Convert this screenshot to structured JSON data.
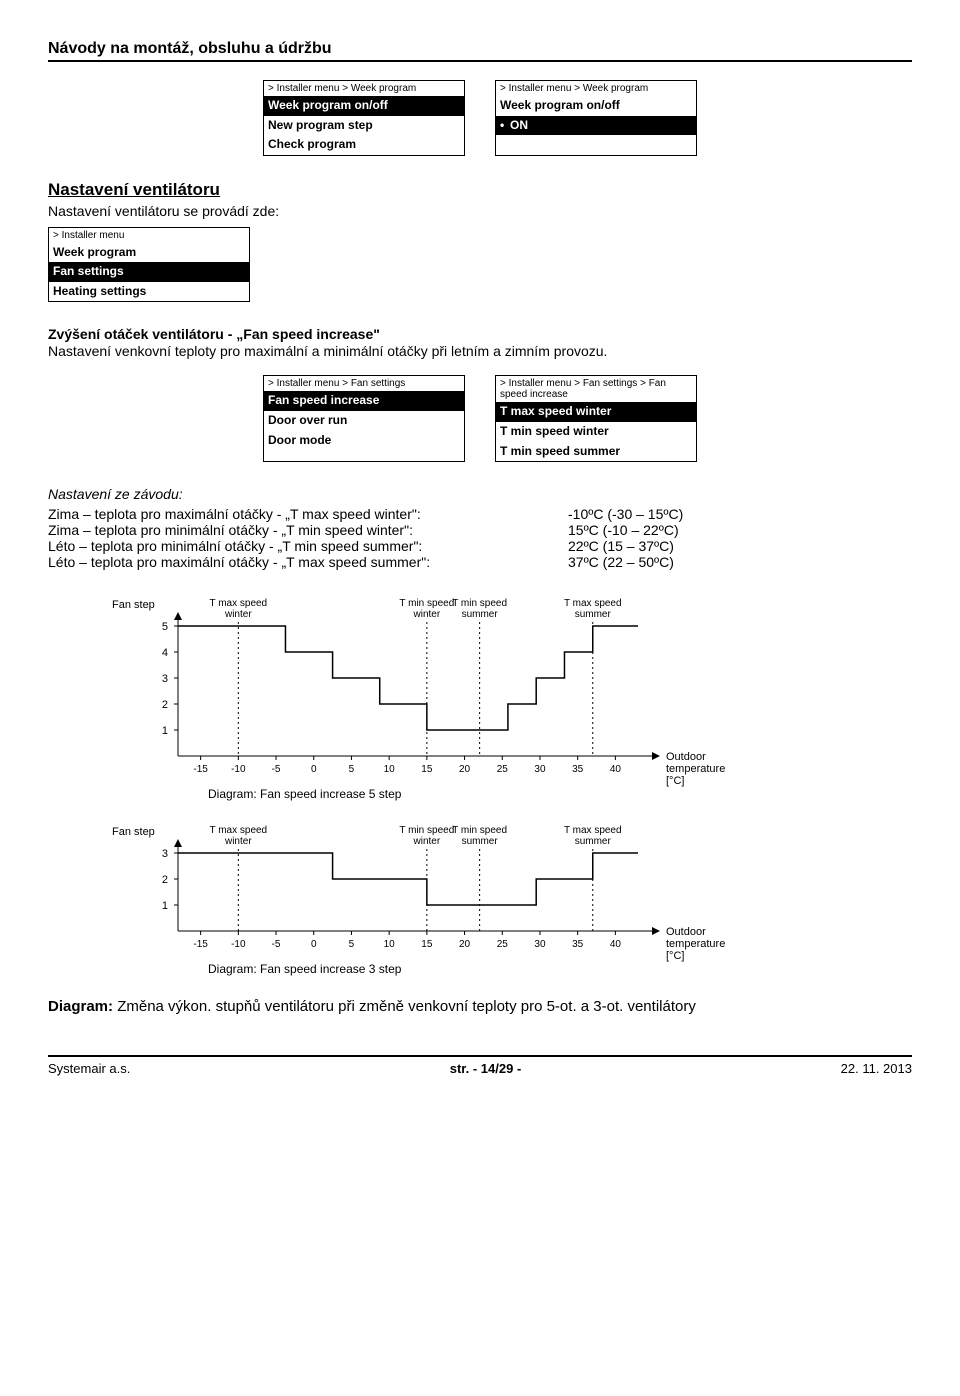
{
  "header": "Návody na montáž, obsluhu a údržbu",
  "menus_top": [
    {
      "breadcrumb": "> Installer menu > Week program",
      "items": [
        {
          "label": "Week program on/off",
          "selected": true
        },
        {
          "label": "New program step",
          "selected": false
        },
        {
          "label": "Check program",
          "selected": false
        }
      ]
    },
    {
      "breadcrumb": "> Installer menu > Week program",
      "items": [
        {
          "label": "Week program on/off",
          "selected": false
        },
        {
          "label": "ON",
          "selected": true,
          "indent": true
        }
      ]
    }
  ],
  "section_fan": {
    "heading": "Nastavení ventilátoru",
    "subtext": "Nastavení ventilátoru se provádí zde:"
  },
  "menus_fan": [
    {
      "breadcrumb": "> Installer menu",
      "items": [
        {
          "label": "Week program",
          "selected": false
        },
        {
          "label": "Fan settings",
          "selected": true
        },
        {
          "label": "Heating settings",
          "selected": false
        }
      ]
    }
  ],
  "fan_increase": {
    "heading": "Zvýšení otáček ventilátoru - „Fan speed increase\"",
    "text": "Nastavení venkovní teploty pro maximální a minimální otáčky při letním a zimním provozu."
  },
  "menus_increase": [
    {
      "breadcrumb": "> Installer menu > Fan settings",
      "items": [
        {
          "label": "Fan speed increase",
          "selected": true
        },
        {
          "label": "Door over run",
          "selected": false
        },
        {
          "label": "Door mode",
          "selected": false
        }
      ]
    },
    {
      "breadcrumb": "> Installer menu > Fan settings > Fan speed increase",
      "items": [
        {
          "label": "T max speed winter",
          "selected": true
        },
        {
          "label": "T min speed winter",
          "selected": false
        },
        {
          "label": "T min speed summer",
          "selected": false
        }
      ]
    }
  ],
  "factory": {
    "heading": "Nastavení ze závodu:",
    "rows": [
      {
        "label": "Zima – teplota pro maximální otáčky - „T max speed winter\":",
        "value": "-10ºC (-30 – 15ºC)"
      },
      {
        "label": "Zima – teplota pro minimální otáčky - „T min speed winter\":",
        "value": "15ºC (-10 – 22ºC)"
      },
      {
        "label": "Léto – teplota pro minimální otáčky  - „T min speed summer\":",
        "value": "22ºC (15 – 37ºC)"
      },
      {
        "label": "Léto – teplota pro maximální otáčky - „T max speed summer\":",
        "value": "37ºC (22 – 50ºC)"
      }
    ]
  },
  "chart5": {
    "ylabel": "Fan step",
    "markers": [
      "T max speed\nwinter",
      "T min speed\nwinter",
      "T min speed\nsummer",
      "T max speed\nsummer"
    ],
    "marker_x": [
      -10,
      15,
      22,
      37
    ],
    "ysteps": [
      5,
      4,
      3,
      2,
      1
    ],
    "xticks": [
      -15,
      -10,
      -5,
      0,
      5,
      10,
      15,
      20,
      25,
      30,
      35,
      40
    ],
    "xlabel_right": "Outdoor\ntemperature\n[°C]",
    "caption": "Diagram: Fan speed increase 5 step",
    "xlim": [
      -18,
      43
    ],
    "colors": {
      "line": "#000",
      "grid": "#000",
      "bg": "#fff"
    }
  },
  "chart3": {
    "ylabel": "Fan step",
    "markers": [
      "T max speed\nwinter",
      "T min speed\nwinter",
      "T min speed\nsummer",
      "T max speed\nsummer"
    ],
    "marker_x": [
      -10,
      15,
      22,
      37
    ],
    "ysteps": [
      3,
      2,
      1
    ],
    "xticks": [
      -15,
      -10,
      -5,
      0,
      5,
      10,
      15,
      20,
      25,
      30,
      35,
      40
    ],
    "xlabel_right": "Outdoor\ntemperature\n[°C]",
    "caption": "Diagram: Fan speed increase 3 step",
    "xlim": [
      -18,
      43
    ],
    "colors": {
      "line": "#000",
      "grid": "#000",
      "bg": "#fff"
    }
  },
  "chart_text": "Diagram: Změna výkon. stupňů ventilátoru při změně venkovní teploty pro 5-ot. a 3-ot. ventilátory",
  "footer": {
    "left": "Systemair a.s.",
    "center": "str. - 14/29 -",
    "right": "22. 11. 2013"
  }
}
